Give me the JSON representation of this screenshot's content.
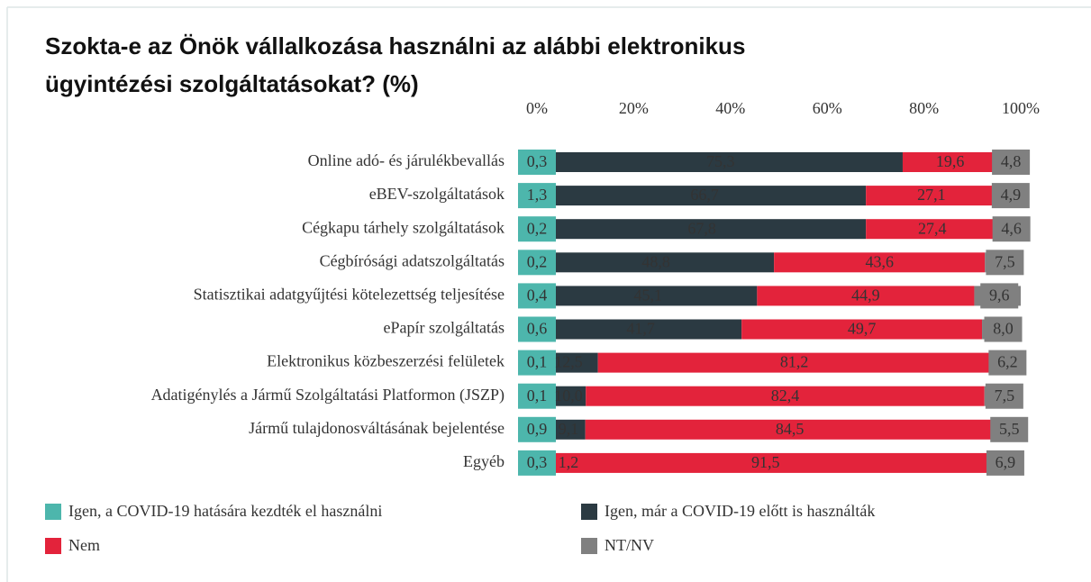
{
  "chart_data": {
    "type": "stacked_barh",
    "title": "Szokta-e az Önök vállalkozása használni az alábbi elektronikus ügyintézési szolgáltatásokat? (%)",
    "categories": [
      "Online adó- és járulékbevallás",
      "eBEV-szolgáltatások",
      "Cégkapu tárhely szolgáltatások",
      "Cégbírósági adatszolgáltatás",
      "Statisztikai adatgyűjtési kötelezettség teljesítése",
      "ePapír szolgáltatás",
      "Elektronikus közbeszerzési felületek",
      "Adatigénylés a Jármű Szolgáltatási Platformon (JSZP)",
      "Jármű tulajdonosváltásának bejelentése",
      "Egyéb"
    ],
    "xlim": [
      0,
      100
    ],
    "xticks": [
      {
        "value": 0,
        "label": "0%"
      },
      {
        "value": 20,
        "label": "20%"
      },
      {
        "value": 40,
        "label": "40%"
      },
      {
        "value": 60,
        "label": "60%"
      },
      {
        "value": 80,
        "label": "80%"
      },
      {
        "value": 100,
        "label": "100%"
      }
    ],
    "series": [
      {
        "name": "Igen, a COVID-19 hatására kezdték el használni",
        "color": "#4db6ac",
        "values": [
          0.3,
          1.3,
          0.2,
          0.2,
          0.4,
          0.6,
          0.1,
          0.1,
          0.9,
          0.3
        ],
        "value_labels": [
          "0,3",
          "1,3",
          "0,2",
          "0,2",
          "0,4",
          "0,6",
          "0,1",
          "0,1",
          "0,9",
          "0,3"
        ]
      },
      {
        "name": "Igen, már a COVID-19 előtt is használták",
        "color": "#2b3a42",
        "values": [
          75.3,
          66.7,
          67.8,
          48.8,
          45.1,
          41.7,
          12.5,
          10.0,
          9.1,
          1.2
        ],
        "value_labels": [
          "75,3",
          "66,7",
          "67,8",
          "48,8",
          "45,1",
          "41,7",
          "12,5",
          "10,0",
          "9,1",
          "1,2"
        ]
      },
      {
        "name": "Nem",
        "color": "#e3233b",
        "values": [
          19.6,
          27.1,
          27.4,
          43.6,
          44.9,
          49.7,
          81.2,
          82.4,
          84.5,
          91.5
        ],
        "value_labels": [
          "19,6",
          "27,1",
          "27,4",
          "43,6",
          "44,9",
          "49,7",
          "81,2",
          "82,4",
          "84,5",
          "91,5"
        ]
      },
      {
        "name": "NT/NV",
        "color": "#808080",
        "values": [
          4.8,
          4.9,
          4.6,
          7.5,
          9.6,
          8.0,
          6.2,
          7.5,
          5.5,
          6.9
        ],
        "value_labels": [
          "4,8",
          "4,9",
          "4,6",
          "7,5",
          "9,6",
          "8,0",
          "6,2",
          "7,5",
          "5,5",
          "6,9"
        ]
      }
    ]
  }
}
